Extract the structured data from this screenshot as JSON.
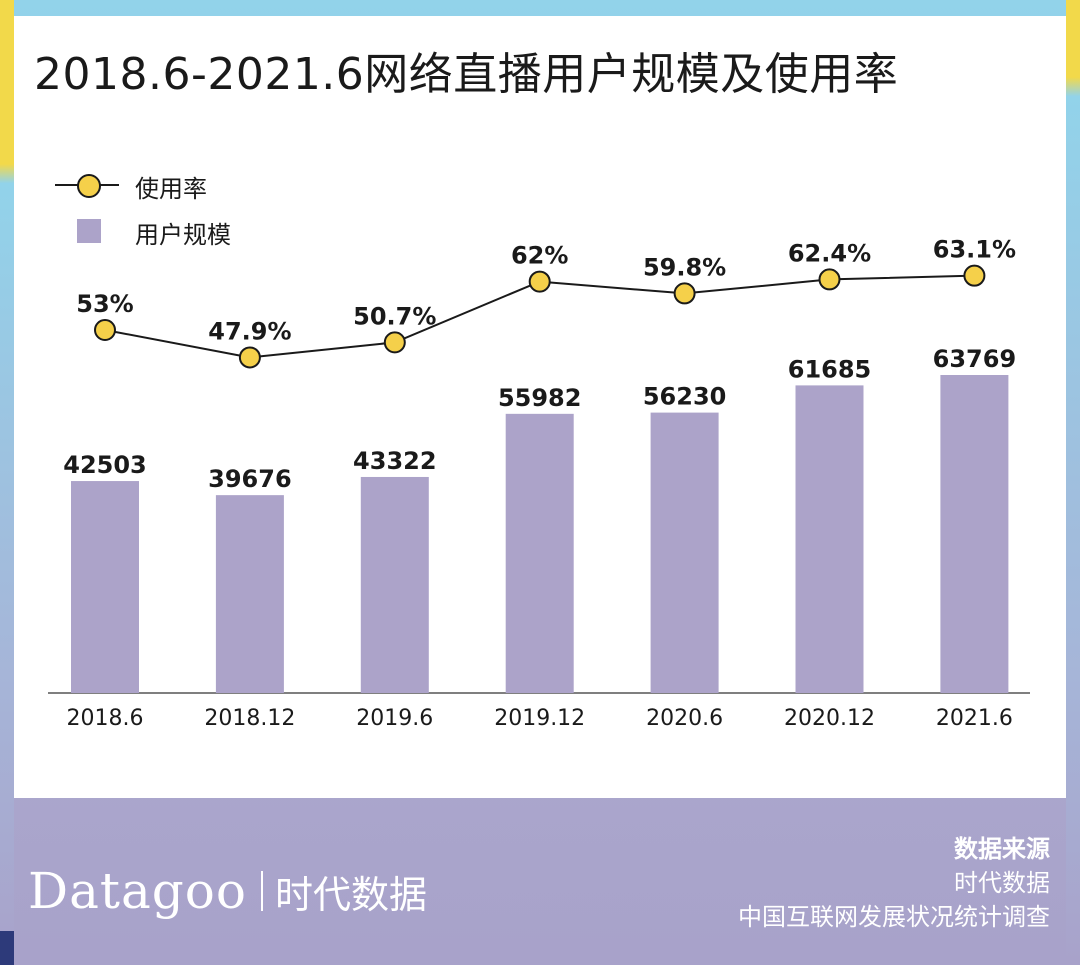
{
  "title": "2018.6-2021.6网络直播用户规模及使用率",
  "legend": {
    "rate_label": "使用率",
    "users_label": "用户规模"
  },
  "colors": {
    "bar": "#aca3c9",
    "dot": "#f5d04a",
    "line": "#1a1a1a",
    "background_top": "#92d3ea",
    "footer": "#a8a2ca",
    "accent_yellow": "#f2d94a"
  },
  "chart_data": {
    "type": "bar",
    "categories": [
      "2018.6",
      "2018.12",
      "2019.6",
      "2019.12",
      "2020.6",
      "2020.12",
      "2021.6"
    ],
    "series": [
      {
        "name": "用户规模",
        "type": "bar",
        "values": [
          42503,
          39676,
          43322,
          55982,
          56230,
          61685,
          63769
        ],
        "labels": [
          "42503",
          "39676",
          "43322",
          "55982",
          "56230",
          "61685",
          "63769"
        ]
      },
      {
        "name": "使用率",
        "type": "line",
        "values": [
          53,
          47.9,
          50.7,
          62,
          59.8,
          62.4,
          63.1
        ],
        "labels": [
          "53%",
          "47.9%",
          "50.7%",
          "62%",
          "59.8%",
          "62.4%",
          "63.1%"
        ]
      }
    ],
    "legend_position": "top-left",
    "grid": false
  },
  "footer": {
    "brand_en": "Datagoo",
    "brand_cn": "时代数据",
    "source_title": "数据来源",
    "source_lines": [
      "时代数据",
      "中国互联网发展状况统计调查"
    ]
  }
}
